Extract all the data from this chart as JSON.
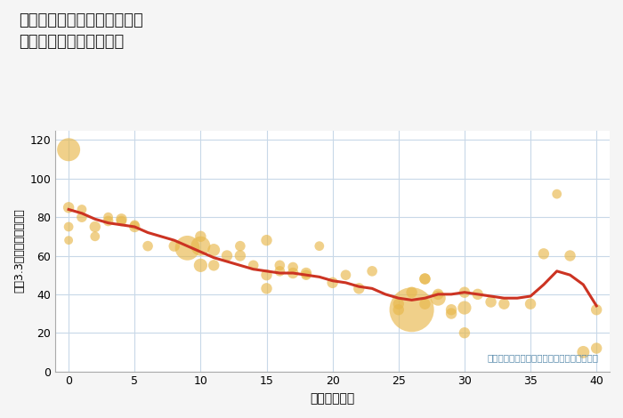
{
  "title": "大阪府大阪市生野区生野東の\n築年数別中古戸建て価格",
  "xlabel": "築年数（年）",
  "ylabel": "坪（3.3㎡）単価（万円）",
  "annotation": "円の大きさは、取引のあった物件面積を示す",
  "background_color": "#f5f5f5",
  "plot_bg_color": "#ffffff",
  "grid_color": "#c8d8e8",
  "bubble_color": "#e8b84b",
  "bubble_alpha": 0.65,
  "line_color": "#cc3322",
  "line_width": 2.2,
  "xlim": [
    -1,
    41
  ],
  "ylim": [
    0,
    125
  ],
  "xticks": [
    0,
    5,
    10,
    15,
    20,
    25,
    30,
    35,
    40
  ],
  "yticks": [
    0,
    20,
    40,
    60,
    80,
    100,
    120
  ],
  "scatter_x": [
    0,
    0,
    0,
    0,
    1,
    1,
    2,
    2,
    3,
    3,
    4,
    4,
    5,
    5,
    6,
    8,
    9,
    10,
    10,
    10,
    11,
    11,
    12,
    13,
    13,
    14,
    15,
    15,
    15,
    16,
    16,
    17,
    17,
    18,
    18,
    19,
    20,
    21,
    22,
    23,
    25,
    25,
    26,
    26,
    27,
    27,
    27,
    28,
    28,
    29,
    29,
    30,
    30,
    30,
    31,
    32,
    33,
    35,
    36,
    37,
    38,
    39,
    40,
    40
  ],
  "scatter_y": [
    85,
    75,
    68,
    115,
    84,
    80,
    70,
    75,
    78,
    80,
    79,
    78,
    75,
    76,
    65,
    65,
    64,
    65,
    70,
    55,
    55,
    63,
    60,
    65,
    60,
    55,
    50,
    43,
    68,
    52,
    55,
    51,
    54,
    51,
    50,
    65,
    46,
    50,
    43,
    52,
    32,
    35,
    32,
    41,
    35,
    48,
    48,
    38,
    40,
    30,
    32,
    41,
    20,
    33,
    40,
    36,
    35,
    35,
    61,
    92,
    60,
    10,
    32,
    12
  ],
  "scatter_size": [
    80,
    60,
    50,
    350,
    60,
    70,
    60,
    80,
    70,
    60,
    80,
    70,
    80,
    60,
    70,
    80,
    400,
    250,
    80,
    120,
    80,
    100,
    80,
    70,
    80,
    70,
    80,
    80,
    80,
    70,
    70,
    80,
    70,
    80,
    70,
    60,
    80,
    70,
    80,
    70,
    80,
    80,
    1300,
    80,
    80,
    80,
    80,
    150,
    80,
    80,
    80,
    80,
    80,
    120,
    80,
    80,
    80,
    80,
    80,
    60,
    80,
    100,
    80,
    80
  ],
  "trend_x": [
    0,
    1,
    2,
    3,
    4,
    5,
    6,
    7,
    8,
    9,
    10,
    11,
    12,
    13,
    14,
    15,
    16,
    17,
    18,
    19,
    20,
    21,
    22,
    23,
    24,
    25,
    26,
    27,
    28,
    29,
    30,
    31,
    32,
    33,
    34,
    35,
    36,
    37,
    38,
    39,
    40
  ],
  "trend_y": [
    84,
    82,
    79,
    77,
    76,
    75,
    72,
    70,
    68,
    65,
    62,
    59,
    57,
    55,
    53,
    52,
    51,
    51,
    50,
    49,
    47,
    46,
    44,
    43,
    40,
    38,
    37,
    38,
    40,
    40,
    41,
    40,
    39,
    38,
    38,
    39,
    45,
    52,
    50,
    45,
    34
  ]
}
